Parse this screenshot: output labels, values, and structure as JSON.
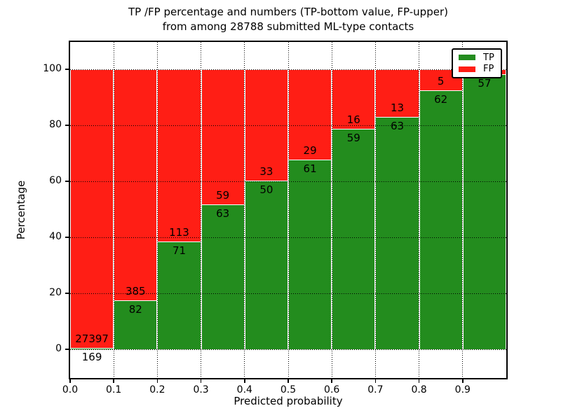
{
  "figure": {
    "title_line1": "TP /FP percentage and numbers (TP-bottom value, FP-upper)",
    "title_line2": "from among 28788 submitted ML-type contacts",
    "xlabel": "Predicted probability",
    "ylabel": "Percentage"
  },
  "colors": {
    "tp": "#238c1e",
    "fp": "#ff1e15",
    "bar_edge": "#ffffff",
    "grid": "#000000",
    "background": "#ffffff"
  },
  "chart_data": {
    "type": "bar",
    "stacked": true,
    "units": "percent",
    "title": "TP /FP percentage and numbers (TP-bottom value, FP-upper) from among 28788 submitted ML-type contacts",
    "total_contacts": 28788,
    "xlabel": "Predicted probability",
    "ylabel": "Percentage",
    "xlim": [
      0.0,
      1.0
    ],
    "ylim": [
      -10,
      110
    ],
    "grid": true,
    "legend_position": "upper right",
    "legend": [
      {
        "name": "TP",
        "color": "#238c1e"
      },
      {
        "name": "FP",
        "color": "#ff1e15"
      }
    ],
    "x_tick_labels": [
      "0.0",
      "0.1",
      "0.2",
      "0.3",
      "0.4",
      "0.5",
      "0.6",
      "0.7",
      "0.8",
      "0.9"
    ],
    "y_ticks": [
      0,
      20,
      40,
      60,
      80,
      100
    ],
    "y_tick_labels": [
      "0",
      "20",
      "40",
      "60",
      "80",
      "100"
    ],
    "bins": [
      {
        "range": [
          0.0,
          0.1
        ],
        "tp": 169,
        "fp": 27397,
        "tp_pct": 0.61,
        "tp_label": "169",
        "fp_label": "27397"
      },
      {
        "range": [
          0.1,
          0.2
        ],
        "tp": 82,
        "fp": 385,
        "tp_pct": 17.56,
        "tp_label": "82",
        "fp_label": "385"
      },
      {
        "range": [
          0.2,
          0.3
        ],
        "tp": 71,
        "fp": 113,
        "tp_pct": 38.59,
        "tp_label": "71",
        "fp_label": "113"
      },
      {
        "range": [
          0.3,
          0.4
        ],
        "tp": 63,
        "fp": 59,
        "tp_pct": 51.64,
        "tp_label": "63",
        "fp_label": "59"
      },
      {
        "range": [
          0.4,
          0.5
        ],
        "tp": 50,
        "fp": 33,
        "tp_pct": 60.24,
        "tp_label": "50",
        "fp_label": "33"
      },
      {
        "range": [
          0.5,
          0.6
        ],
        "tp": 61,
        "fp": 29,
        "tp_pct": 67.78,
        "tp_label": "61",
        "fp_label": "29"
      },
      {
        "range": [
          0.6,
          0.7
        ],
        "tp": 59,
        "fp": 16,
        "tp_pct": 78.67,
        "tp_label": "59",
        "fp_label": "16"
      },
      {
        "range": [
          0.7,
          0.8
        ],
        "tp": 63,
        "fp": 13,
        "tp_pct": 82.89,
        "tp_label": "63",
        "fp_label": "13"
      },
      {
        "range": [
          0.8,
          0.9
        ],
        "tp": 62,
        "fp": 5,
        "tp_pct": 92.54,
        "tp_label": "62",
        "fp_label": "5"
      },
      {
        "range": [
          0.9,
          1.0
        ],
        "tp": 57,
        "fp": null,
        "tp_pct": 98.28,
        "tp_label": "57",
        "fp_label": ""
      }
    ]
  }
}
